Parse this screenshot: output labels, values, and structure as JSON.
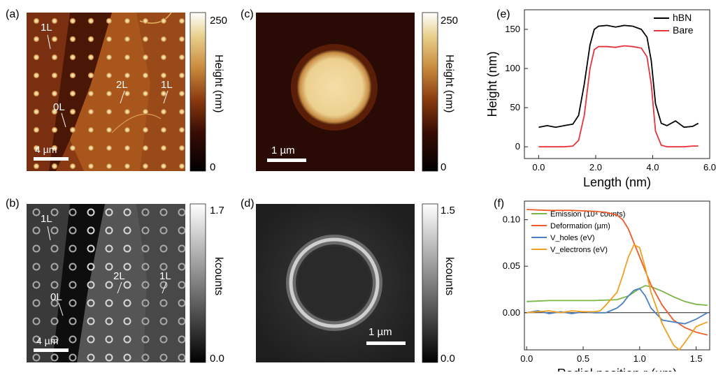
{
  "panels": {
    "a": {
      "label": "(a)",
      "annotations": [
        "1L",
        "0L",
        "2L",
        "1L"
      ],
      "scalebar": "4 µm",
      "colorbar": {
        "max": "250",
        "min": "0",
        "label": "Height (nm)"
      }
    },
    "b": {
      "label": "(b)",
      "annotations": [
        "1L",
        "0L",
        "2L",
        "1L"
      ],
      "scalebar": "4 µm",
      "colorbar": {
        "max": "1.7",
        "min": "0.0",
        "label": "kcounts"
      }
    },
    "c": {
      "label": "(c)",
      "scalebar": "1 µm",
      "colorbar": {
        "max": "250",
        "min": "0",
        "label": "Height (nm)"
      }
    },
    "d": {
      "label": "(d)",
      "scalebar": "1 µm",
      "colorbar": {
        "max": "1.5",
        "min": "0.0",
        "label": "kcounts"
      }
    },
    "e": {
      "label": "(e)"
    },
    "f": {
      "label": "(f)"
    }
  },
  "colors": {
    "hBN": "#000000",
    "Bare": "#e8323c",
    "Emission": "#7ab648",
    "Deformation": "#f05a28",
    "Vholes": "#4a7fc1",
    "Velectrons": "#f0a020"
  },
  "chart_data": [
    {
      "panel": "e",
      "type": "line",
      "xlabel": "Length (nm)",
      "ylabel": "Height (nm)",
      "xlim": [
        -0.5,
        6.0
      ],
      "ylim": [
        -15,
        175
      ],
      "xticks": [
        "0.0",
        "2.0",
        "4.0",
        "6.0"
      ],
      "yticks": [
        "0",
        "50",
        "100",
        "150"
      ],
      "legend": "top-right",
      "series": [
        {
          "name": "hBN",
          "x": [
            0.0,
            0.3,
            0.6,
            0.9,
            1.2,
            1.4,
            1.6,
            1.8,
            1.95,
            2.1,
            2.4,
            2.7,
            3.0,
            3.3,
            3.6,
            3.8,
            3.95,
            4.1,
            4.3,
            4.5,
            4.8,
            5.1,
            5.4,
            5.6
          ],
          "y": [
            25,
            27,
            25,
            27,
            29,
            40,
            80,
            130,
            150,
            154,
            155,
            153,
            155,
            154,
            150,
            140,
            110,
            55,
            30,
            27,
            33,
            25,
            26,
            30
          ]
        },
        {
          "name": "Bare",
          "x": [
            0.0,
            0.3,
            0.6,
            0.9,
            1.2,
            1.4,
            1.6,
            1.8,
            1.95,
            2.1,
            2.4,
            2.7,
            3.0,
            3.3,
            3.6,
            3.8,
            3.95,
            4.1,
            4.3,
            4.5,
            4.8,
            5.1,
            5.4,
            5.6
          ],
          "y": [
            0,
            0,
            0,
            0,
            1,
            8,
            40,
            100,
            124,
            128,
            128,
            127,
            129,
            128,
            126,
            115,
            80,
            20,
            2,
            0,
            0,
            0,
            1,
            1
          ]
        }
      ]
    },
    {
      "panel": "f",
      "type": "line",
      "xlabel": "Radial position r (µm)",
      "ylabel": "",
      "xlim": [
        -0.02,
        1.62
      ],
      "ylim": [
        -0.04,
        0.12
      ],
      "xticks": [
        "0.0",
        "0.5",
        "1.0",
        "1.5"
      ],
      "yticks": [
        "0.00",
        "0.05",
        "0.10"
      ],
      "legend": "top-left",
      "series": [
        {
          "name": "Emission (10⁴ counts)",
          "x": [
            0.0,
            0.2,
            0.4,
            0.6,
            0.8,
            0.9,
            1.0,
            1.05,
            1.1,
            1.2,
            1.3,
            1.4,
            1.5,
            1.6
          ],
          "y": [
            0.012,
            0.013,
            0.013,
            0.013,
            0.014,
            0.018,
            0.026,
            0.029,
            0.028,
            0.023,
            0.017,
            0.012,
            0.009,
            0.008
          ]
        },
        {
          "name": "Deformation (µm)",
          "x": [
            0.0,
            0.2,
            0.4,
            0.6,
            0.7,
            0.8,
            0.85,
            0.9,
            0.95,
            1.0,
            1.1,
            1.2,
            1.3,
            1.4,
            1.5,
            1.6
          ],
          "y": [
            0.111,
            0.11,
            0.11,
            0.109,
            0.108,
            0.105,
            0.1,
            0.09,
            0.075,
            0.06,
            0.03,
            0.008,
            -0.008,
            -0.016,
            -0.021,
            -0.024
          ]
        },
        {
          "name": "V_holes (eV)",
          "x": [
            0.0,
            0.1,
            0.2,
            0.3,
            0.4,
            0.5,
            0.6,
            0.7,
            0.8,
            0.85,
            0.9,
            0.95,
            1.0,
            1.05,
            1.1,
            1.2,
            1.3,
            1.4,
            1.5,
            1.6
          ],
          "y": [
            0.0,
            0.002,
            -0.001,
            0.001,
            -0.001,
            0.001,
            0.0,
            0.0,
            0.005,
            0.01,
            0.018,
            0.024,
            0.026,
            0.018,
            0.005,
            -0.008,
            -0.01,
            -0.012,
            -0.007,
            0.0
          ]
        },
        {
          "name": "V_electrons (eV)",
          "x": [
            0.0,
            0.1,
            0.2,
            0.3,
            0.4,
            0.5,
            0.6,
            0.65,
            0.7,
            0.8,
            0.85,
            0.9,
            0.95,
            1.0,
            1.05,
            1.1,
            1.2,
            1.3,
            1.35,
            1.4,
            1.5,
            1.6
          ],
          "y": [
            0.0,
            0.001,
            0.002,
            0.0,
            0.002,
            0.001,
            0.001,
            0.002,
            0.008,
            0.022,
            0.04,
            0.06,
            0.073,
            0.07,
            0.048,
            0.022,
            -0.012,
            -0.035,
            -0.04,
            -0.032,
            -0.015,
            -0.01
          ]
        }
      ]
    }
  ]
}
